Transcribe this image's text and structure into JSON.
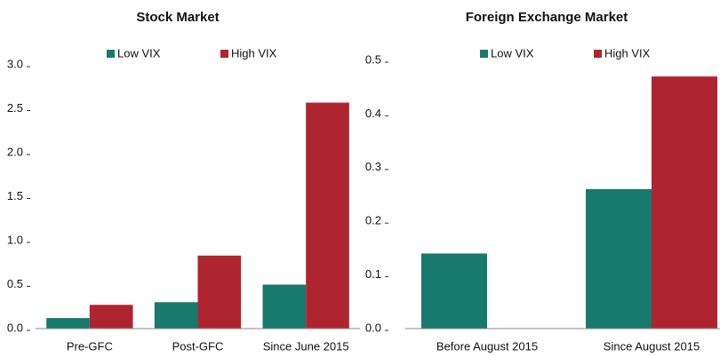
{
  "chart_data": [
    {
      "type": "bar",
      "title": "Stock Market",
      "categories": [
        "Pre-GFC",
        "Post-GFC",
        "Since June 2015"
      ],
      "series": [
        {
          "name": "Low VIX",
          "color": "#177a6c",
          "values": [
            0.12,
            0.3,
            0.5
          ]
        },
        {
          "name": "High VIX",
          "color": "#ae2530",
          "values": [
            0.27,
            0.83,
            2.57
          ]
        }
      ],
      "ylim": [
        0,
        3
      ],
      "yticks": [
        {
          "value": 0,
          "label": "0.0"
        },
        0.5,
        {
          "value": 1,
          "label": "1.0"
        },
        1.5,
        {
          "value": 2,
          "label": "2.0"
        },
        2.5,
        {
          "value": 3,
          "label": "3.0"
        }
      ],
      "grid": false
    },
    {
      "type": "bar",
      "title": "Foreign Exchange Market",
      "categories": [
        "Before August 2015",
        "Since August 2015"
      ],
      "series": [
        {
          "name": "Low VIX",
          "color": "#177a6c",
          "values": [
            0.14,
            0.26
          ]
        },
        {
          "name": "High VIX",
          "color": "#ae2530",
          "values": [
            null,
            0.47
          ]
        }
      ],
      "ylim": [
        0,
        0.5
      ],
      "yticks": [
        {
          "value": 0,
          "label": "0.0"
        },
        0.1,
        0.2,
        0.3,
        0.4,
        0.5
      ],
      "grid": false
    }
  ]
}
